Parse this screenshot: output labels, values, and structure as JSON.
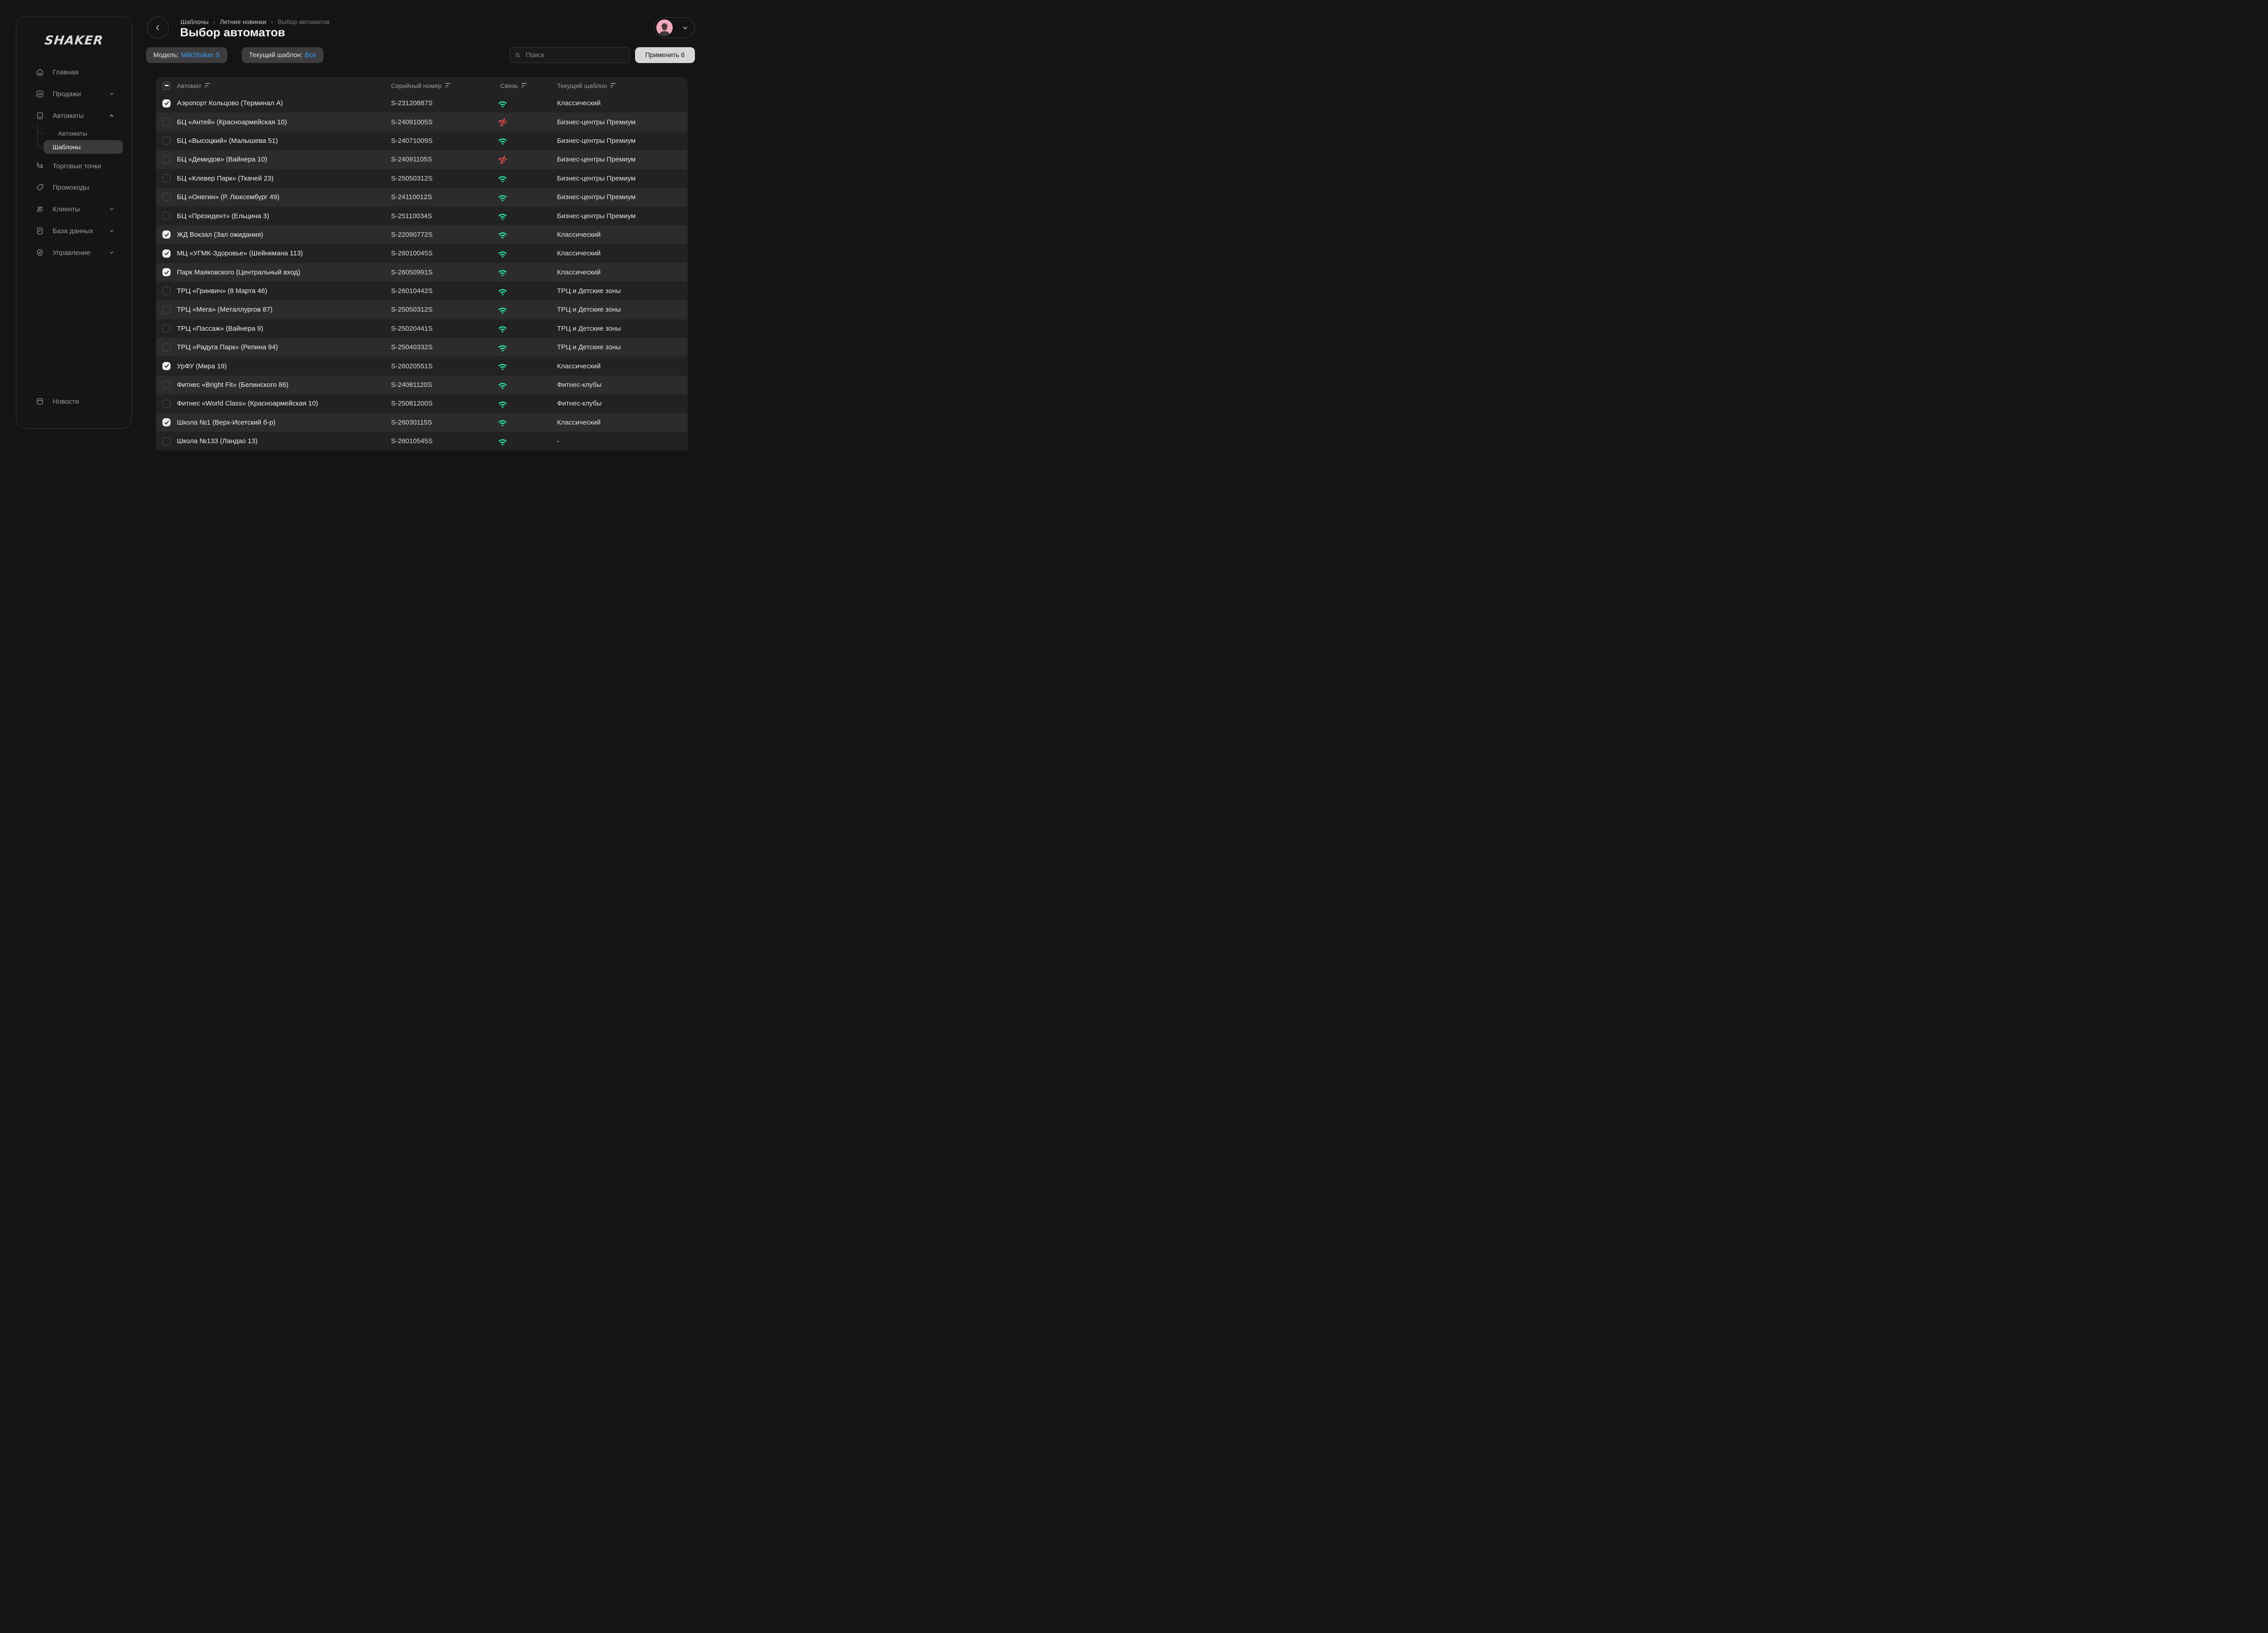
{
  "sidebar": {
    "logo": "SHAKER",
    "items": [
      {
        "label": "Главная",
        "icon": "home"
      },
      {
        "label": "Продажи",
        "icon": "sales-chart",
        "chevron": "down"
      },
      {
        "label": "Автоматы",
        "icon": "vending-machine",
        "chevron": "up"
      },
      {
        "label": "Торговые точки",
        "icon": "network-points"
      },
      {
        "label": "Промокоды",
        "icon": "promo-tag"
      },
      {
        "label": "Клиенты",
        "icon": "clients",
        "chevron": "down"
      },
      {
        "label": "База данных",
        "icon": "database-doc",
        "chevron": "down"
      },
      {
        "label": "Управление",
        "icon": "management-shield",
        "chevron": "down"
      }
    ],
    "submenu": [
      {
        "label": "Автоматы",
        "active": false
      },
      {
        "label": "Шаблоны",
        "active": true
      }
    ],
    "footer_item": {
      "label": "Новости",
      "icon": "news"
    }
  },
  "header": {
    "breadcrumbs": [
      "Шаблоны",
      "Летние новинки",
      "Выбор автоматов"
    ],
    "separator": "›",
    "title": "Выбор автоматов"
  },
  "filters": {
    "chips": [
      {
        "label": "Модель:",
        "value": "MilkShaker S"
      },
      {
        "label": "Текущий шаблон:",
        "value": "Все"
      }
    ],
    "search_placeholder": "Поиск",
    "apply_label": "Применить 6",
    "selected_count": "6"
  },
  "table": {
    "columns": [
      "Автомат",
      "Серийный номер",
      "Связь",
      "Текущий шаблон"
    ],
    "header_checkbox_state": "indeterminate",
    "rows": [
      {
        "name": "Аэропорт Кольцово (Терминал А)",
        "serial": "S-23120887S",
        "connection": "online",
        "template": "Классический",
        "checked": true
      },
      {
        "name": "БЦ «Антей» (Красноармейская 10)",
        "serial": "S-24091005S",
        "connection": "offline",
        "template": "Бизнес-центры Премиум",
        "checked": false
      },
      {
        "name": "БЦ «Высоцкий» (Малышева 51)",
        "serial": "S-24071009S",
        "connection": "online",
        "template": "Бизнес-центры Премиум",
        "checked": false
      },
      {
        "name": "БЦ «Демидов» (Вайнера 10)",
        "serial": "S-24091105S",
        "connection": "offline",
        "template": "Бизнес-центры Премиум",
        "checked": false
      },
      {
        "name": "БЦ «Клевер Парк» (Ткачей 23)",
        "serial": "S-25050312S",
        "connection": "online",
        "template": "Бизнес-центры Премиум",
        "checked": false
      },
      {
        "name": "БЦ «Онегин» (Р. Люксембург 49)",
        "serial": "S-24110012S",
        "connection": "online",
        "template": "Бизнес-центры Премиум",
        "checked": false
      },
      {
        "name": "БЦ «Президент» (Ельцина 3)",
        "serial": "S-25110034S",
        "connection": "online",
        "template": "Бизнес-центры Премиум",
        "checked": false
      },
      {
        "name": "ЖД Вокзал (Зал ожидания)",
        "serial": "S-22090772S",
        "connection": "online",
        "template": "Классический",
        "checked": true
      },
      {
        "name": "МЦ «УГМК-Здоровье» (Шейнкмана 113)",
        "serial": "S-26010045S",
        "connection": "online",
        "template": "Классический",
        "checked": true
      },
      {
        "name": "Парк Маяковского (Центральный вход)",
        "serial": "S-26050991S",
        "connection": "online",
        "template": "Классический",
        "checked": true
      },
      {
        "name": "ТРЦ «Гринвич» (8 Марта 46)",
        "serial": "S-26010442S",
        "connection": "online",
        "template": "ТРЦ и Детские зоны",
        "checked": false
      },
      {
        "name": "ТРЦ «Мега» (Металлургов 87)",
        "serial": "S-25050312S",
        "connection": "online",
        "template": "ТРЦ и Детские зоны",
        "checked": false
      },
      {
        "name": "ТРЦ «Пассаж» (Вайнера 9)",
        "serial": "S-25020441S",
        "connection": "online",
        "template": "ТРЦ и Детские зоны",
        "checked": false
      },
      {
        "name": "ТРЦ «Радуга Парк» (Репина 94)",
        "serial": "S-25040332S",
        "connection": "online",
        "template": "ТРЦ и Детские зоны",
        "checked": false
      },
      {
        "name": "УрФУ (Мира 19)",
        "serial": "S-26020551S",
        "connection": "online",
        "template": "Классический",
        "checked": true
      },
      {
        "name": "Фитнес «Bright Fit» (Белинского 86)",
        "serial": "S-24081120S",
        "connection": "online",
        "template": "Фитнес-клубы",
        "checked": false
      },
      {
        "name": "Фитнес «World Class» (Красноармейская 10)",
        "serial": "S-25081200S",
        "connection": "online",
        "template": "Фитнес-клубы",
        "checked": false
      },
      {
        "name": "Школа №1 (Верх-Исетский б-р)",
        "serial": "S-26030115S",
        "connection": "online",
        "template": "Классический",
        "checked": true
      },
      {
        "name": "Школа №133 (Ландао 13)",
        "serial": "S-26010545S",
        "connection": "online",
        "template": "-",
        "checked": false
      }
    ]
  },
  "colors": {
    "background": "#141414",
    "row_dark": "#222222",
    "row_light": "#2c2c2c",
    "accent_blue": "#3b9ef8",
    "online_green": "#2be3a4",
    "offline_red": "#fb4f4f",
    "apply_button": "#d7d7d7",
    "active_item_bg": "#3a3a3c"
  }
}
